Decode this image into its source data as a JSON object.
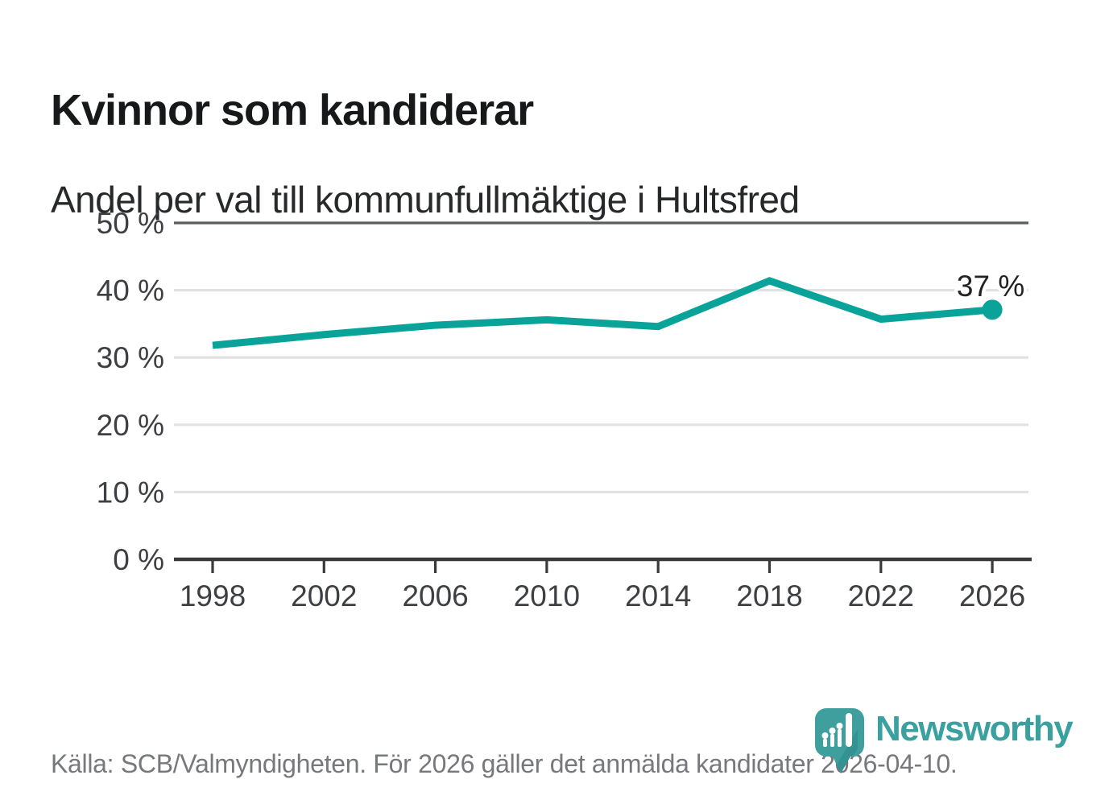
{
  "header": {
    "title": "Kvinnor som kandiderar",
    "subtitle": "Andel per val till kommunfullmäktige i Hultsfred"
  },
  "chart_data": {
    "type": "line",
    "title": "Kvinnor som kandiderar",
    "subtitle": "Andel per val till kommunfullmäktige i Hultsfred",
    "x": [
      1998,
      2002,
      2006,
      2010,
      2014,
      2018,
      2022,
      2026
    ],
    "xtick_labels": [
      "1998",
      "2002",
      "2006",
      "2010",
      "2014",
      "2018",
      "2022",
      "2026"
    ],
    "values": [
      31.8,
      33.4,
      34.8,
      35.6,
      34.6,
      41.4,
      35.7,
      37.1
    ],
    "unit": "%",
    "ylim": [
      0,
      50
    ],
    "yticks": [
      0,
      10,
      20,
      30,
      40,
      50
    ],
    "ytick_labels": [
      "0 %",
      "10 %",
      "20 %",
      "30 %",
      "40 %",
      "50 %"
    ],
    "end_label": "37 %",
    "grid": true,
    "legend": "none",
    "line_color": "#0aa39a",
    "marker": "circle-on-last-point"
  },
  "footer": {
    "source": "Källa: SCB/Valmyndigheten. För 2026 gäller det anmälda kandidater 2026-04-10.",
    "brand": "Newsworthy"
  },
  "colors": {
    "accent": "#0aa39a",
    "brand_teal": "#3aa0a0",
    "brand_teal_dark": "#2e8689",
    "grid_light": "#e2e2e2",
    "grid_top": "#5a5c5e",
    "axis": "#3a3a3c",
    "tick_text": "#3d3f42",
    "title_text": "#16181a",
    "muted_text": "#77787b",
    "label_text": "#222222"
  }
}
